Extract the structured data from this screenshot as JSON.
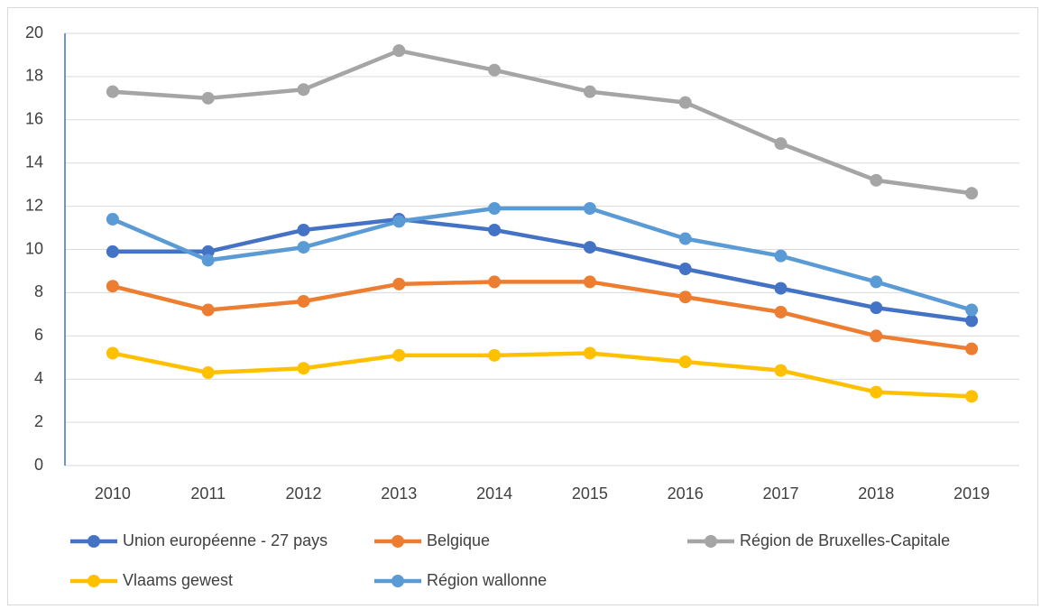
{
  "chart_data": {
    "type": "line",
    "categories": [
      "2010",
      "2011",
      "2012",
      "2013",
      "2014",
      "2015",
      "2016",
      "2017",
      "2018",
      "2019"
    ],
    "series": [
      {
        "name": "Union européenne - 27 pays",
        "color": "#4472c4",
        "values": [
          9.9,
          9.9,
          10.9,
          11.4,
          10.9,
          10.1,
          9.1,
          8.2,
          7.3,
          6.7
        ]
      },
      {
        "name": "Belgique",
        "color": "#ed7d31",
        "values": [
          8.3,
          7.2,
          7.6,
          8.4,
          8.5,
          8.5,
          7.8,
          7.1,
          6.0,
          5.4
        ]
      },
      {
        "name": "Région de Bruxelles-Capitale",
        "color": "#a5a5a5",
        "values": [
          17.3,
          17.0,
          17.4,
          19.2,
          18.3,
          17.3,
          16.8,
          14.9,
          13.2,
          12.6
        ]
      },
      {
        "name": "Vlaams gewest",
        "color": "#ffc000",
        "values": [
          5.2,
          4.3,
          4.5,
          5.1,
          5.1,
          5.2,
          4.8,
          4.4,
          3.4,
          3.2
        ]
      },
      {
        "name": "Région wallonne",
        "color": "#5b9bd5",
        "values": [
          11.4,
          9.5,
          10.1,
          11.3,
          11.9,
          11.9,
          10.5,
          9.7,
          8.5,
          7.2
        ]
      }
    ],
    "ylim": [
      0,
      20
    ],
    "yticks": [
      0,
      2,
      4,
      6,
      8,
      10,
      12,
      14,
      16,
      18,
      20
    ],
    "grid": true,
    "legend": "bottom"
  }
}
